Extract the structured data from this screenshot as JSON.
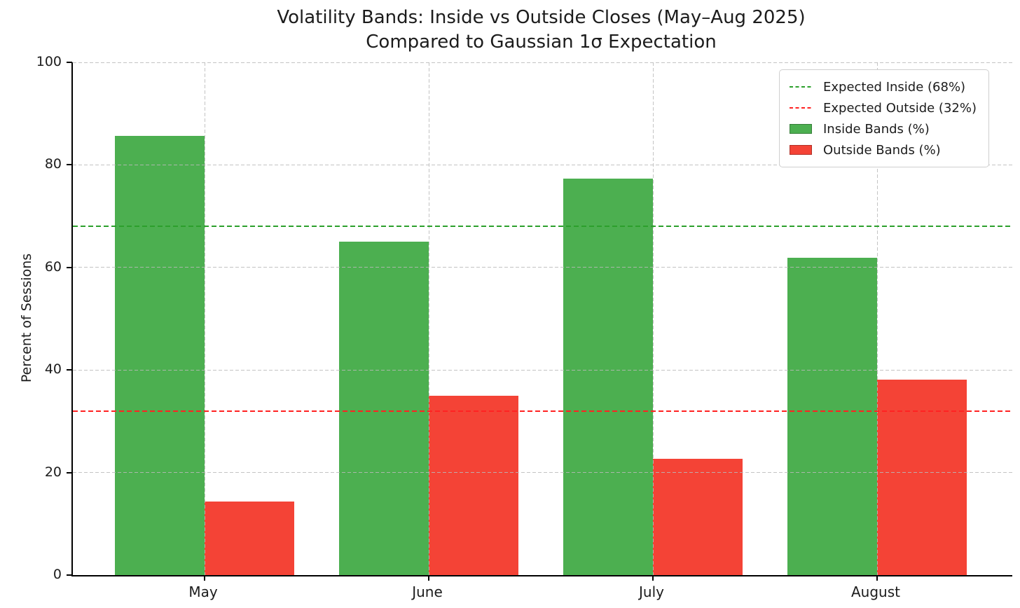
{
  "chart_data": {
    "type": "bar",
    "title_line1": "Volatility Bands: Inside vs Outside Closes (May–Aug 2025)",
    "title_line2": "Compared to Gaussian 1σ Expectation",
    "ylabel": "Percent of Sessions",
    "xlabel": "",
    "categories": [
      "May",
      "June",
      "July",
      "August"
    ],
    "series": [
      {
        "name": "Inside Bands (%)",
        "color": "#4CAF50",
        "values": [
          85.7,
          65.0,
          77.3,
          61.9
        ]
      },
      {
        "name": "Outside Bands (%)",
        "color": "#F44336",
        "values": [
          14.3,
          35.0,
          22.7,
          38.1
        ]
      }
    ],
    "reference_lines": [
      {
        "label": "Expected Inside (68%)",
        "value": 68,
        "color": "#2CA02C",
        "style": "dashed"
      },
      {
        "label": "Expected Outside (32%)",
        "value": 32,
        "color": "#FF2222",
        "style": "dashed"
      }
    ],
    "legend": {
      "items": [
        {
          "label": "Expected Inside (68%)",
          "type": "line",
          "color": "#2CA02C"
        },
        {
          "label": "Expected Outside (32%)",
          "type": "line",
          "color": "#FF2222"
        },
        {
          "label": "Inside Bands (%)",
          "type": "patch",
          "color": "#4CAF50"
        },
        {
          "label": "Outside Bands (%)",
          "type": "patch",
          "color": "#F44336"
        }
      ],
      "position": "upper right"
    },
    "ylim": [
      0,
      100
    ],
    "yticks": [
      0,
      20,
      40,
      60,
      80,
      100
    ],
    "grid": true,
    "grid_style": "dashed"
  }
}
